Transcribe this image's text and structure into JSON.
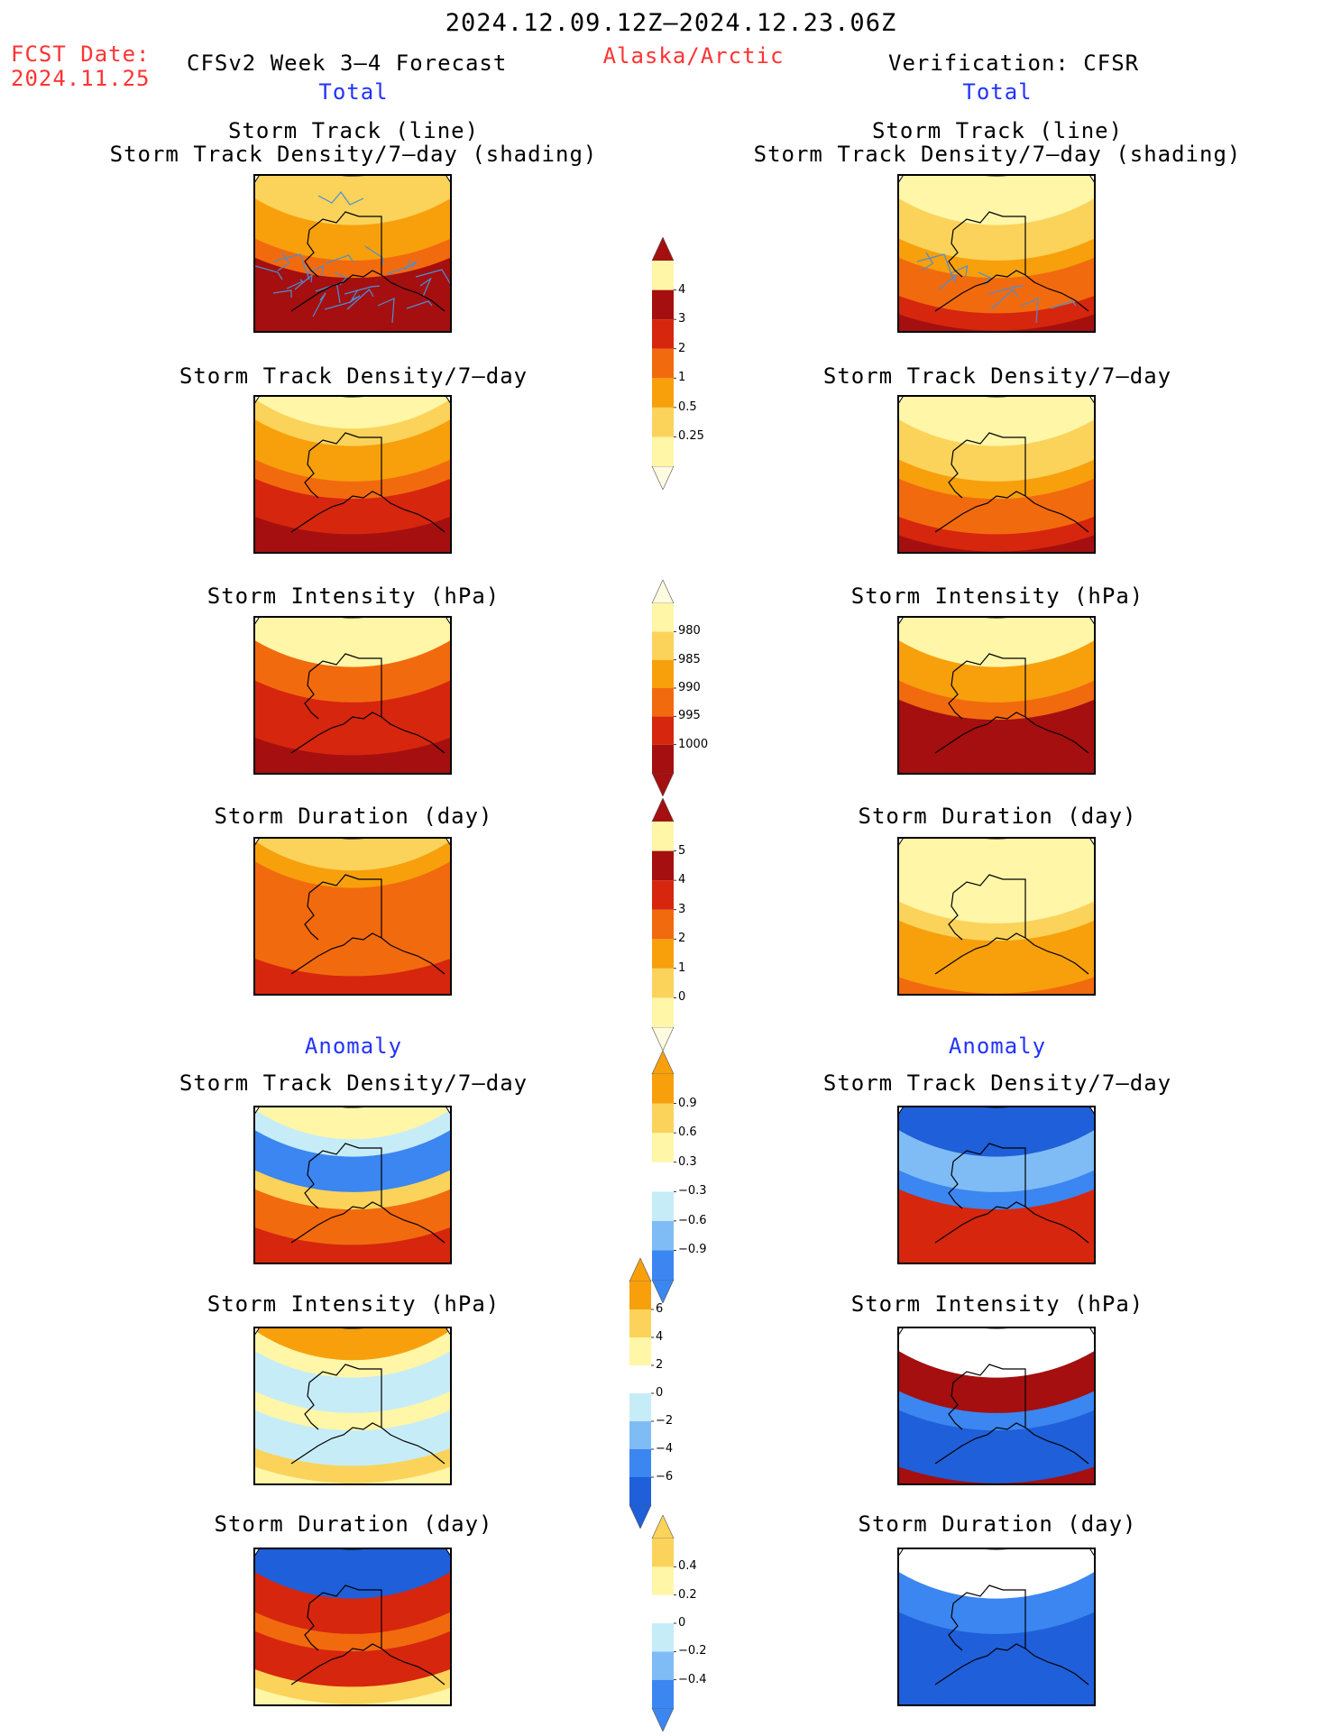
{
  "header": {
    "period": "2024.12.09.12Z–2024.12.23.06Z",
    "fcst_label": "FCST Date:",
    "fcst_date": "2024.11.25",
    "left_title": "CFSv2 Week 3–4 Forecast",
    "region": "Alaska/Arctic",
    "right_title": "Verification: CFSR"
  },
  "sections": {
    "total": "Total",
    "anomaly": "Anomaly"
  },
  "panel_titles": {
    "track_line": "Storm Track (line)",
    "track_shading": "Storm Track Density/7–day (shading)",
    "density": "Storm Track Density/7–day",
    "intensity": "Storm Intensity (hPa)",
    "duration": "Storm Duration (day)"
  },
  "colorbars": {
    "density": [
      "0.25",
      "0.5",
      "1",
      "2",
      "3",
      "4"
    ],
    "intensity": [
      "980",
      "985",
      "990",
      "995",
      "1000"
    ],
    "duration": [
      "0",
      "1",
      "2",
      "3",
      "4",
      "5"
    ],
    "density_anom": [
      "−0.9",
      "−0.6",
      "−0.3",
      "0.3",
      "0.6",
      "0.9"
    ],
    "intensity_anom": [
      "−6",
      "−4",
      "−2",
      "0",
      "2",
      "4",
      "6"
    ],
    "duration_anom": [
      "−0.4",
      "−0.2",
      "0",
      "0.2",
      "0.4"
    ]
  },
  "colors": {
    "warm": [
      "#fff6a8",
      "#fbd35a",
      "#f7a00c",
      "#f26a0e",
      "#d6260e",
      "#a50f0f"
    ],
    "cool": [
      "#1f5fd9",
      "#3b86f0",
      "#7fbcf5",
      "#c6ecf8",
      "#ffffff"
    ],
    "track_line": "#4a8fd6"
  }
}
